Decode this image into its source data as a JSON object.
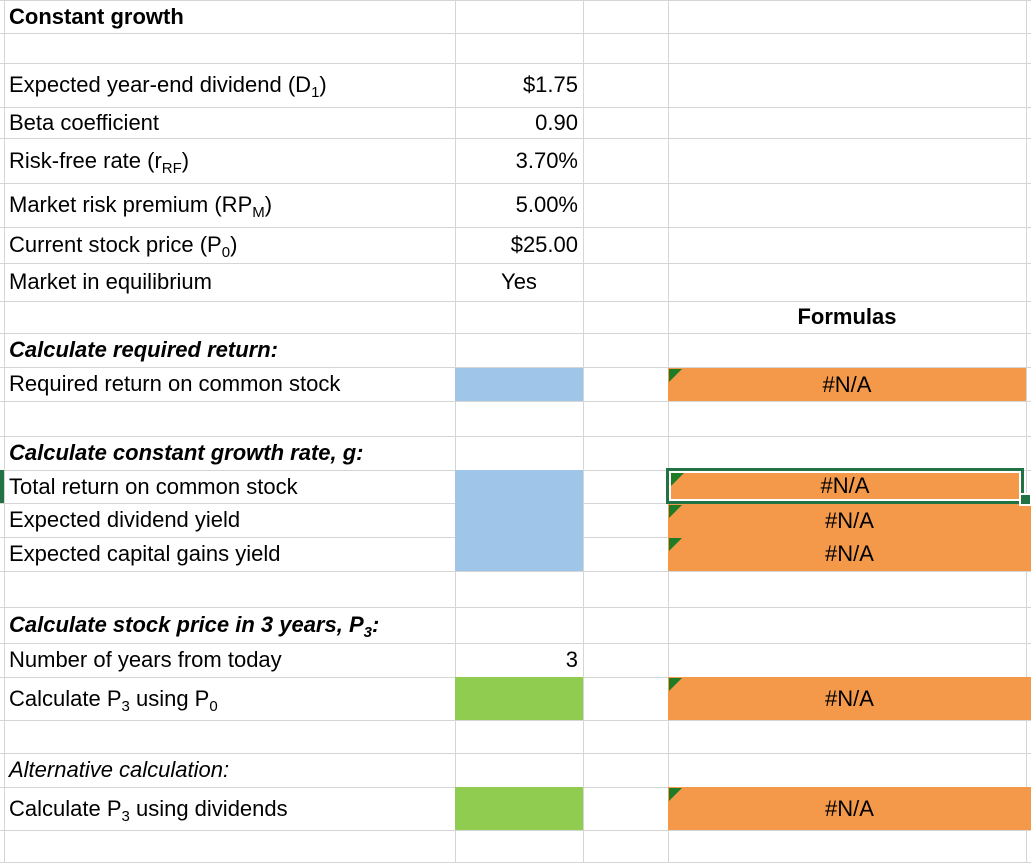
{
  "colors": {
    "input_blue": "#9FC5E8",
    "input_green": "#8FCC4F",
    "formula_orange": "#F4994A",
    "selection_green": "#217346",
    "error_triangle_green": "#1E7B28",
    "gridline_gray": "#D5D5D5"
  },
  "cells": {
    "title": "Constant growth",
    "dividend": {
      "pre": "Expected year-end dividend (D",
      "sub": "1",
      "post": ")",
      "value": "$1.75"
    },
    "beta": {
      "label": "Beta coefficient",
      "value": "0.90"
    },
    "risk_free": {
      "pre": "Risk-free rate (r",
      "sub": "RF",
      "post": ")",
      "value": "3.70%"
    },
    "market_premium": {
      "pre": "Market risk premium (RP",
      "sub": "M",
      "post": ")",
      "value": "5.00%"
    },
    "stock_price": {
      "pre": "Current stock price (P",
      "sub": "0",
      "post": ")",
      "value": "$25.00"
    },
    "equilibrium": {
      "label": "Market in equilibrium",
      "value": "Yes"
    },
    "formulas_header": "Formulas",
    "required_return_section": "Calculate required return:",
    "required_return": {
      "label": "Required return on common stock",
      "formula": "#N/A"
    },
    "growth_section": "Calculate constant growth rate, g:",
    "total_return": {
      "label": "Total return on common stock",
      "formula": "#N/A"
    },
    "dividend_yield": {
      "label": "Expected dividend yield",
      "formula": "#N/A"
    },
    "capital_gains_yield": {
      "label": "Expected capital gains yield",
      "formula": "#N/A"
    },
    "p3_section": {
      "pre": "Calculate stock price in 3 years, P",
      "sub": "3",
      "post": ":"
    },
    "years": {
      "label": "Number of years from today",
      "value": "3"
    },
    "p3_from_p0": {
      "pre": "Calculate P",
      "sub1": "3",
      "mid": " using P",
      "sub2": "0",
      "formula": "#N/A"
    },
    "alt_section": "Alternative calculation:",
    "p3_from_dividends": {
      "pre": "Calculate P",
      "sub": "3",
      "post": " using dividends",
      "formula": "#N/A"
    }
  }
}
